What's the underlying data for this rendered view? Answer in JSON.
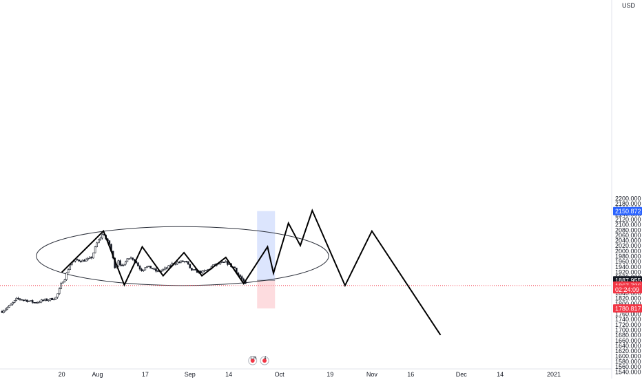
{
  "chart_data": {
    "type": "candlestick",
    "currency_label": "USD",
    "y_axis": {
      "ylim": [
        1530,
        2230
      ],
      "ticks": [
        2200,
        2180,
        2160,
        2140,
        2120,
        2100,
        2080,
        2060,
        2040,
        2020,
        2000,
        1980,
        1960,
        1940,
        1920,
        1900,
        1880,
        1860,
        1840,
        1820,
        1800,
        1780,
        1760,
        1740,
        1720,
        1700,
        1680,
        1660,
        1640,
        1620,
        1600,
        1580,
        1560,
        1540
      ],
      "tick_labels": [
        "2200.000",
        "2180.000",
        "2160.000",
        "2140.000",
        "2120.000",
        "2100.000",
        "2080.000",
        "2060.000",
        "2040.000",
        "2020.000",
        "2000.000",
        "1980.000",
        "1960.000",
        "1940.000",
        "1920.000",
        "1900.000",
        "1880.000",
        "1860.000",
        "1840.000",
        "1820.000",
        "1800.000",
        "1780.000",
        "1760.000",
        "1740.000",
        "1720.000",
        "1700.000",
        "1680.000",
        "1660.000",
        "1640.000",
        "1620.000",
        "1600.000",
        "1580.000",
        "1560.000",
        "1540.000"
      ]
    },
    "x_axis": {
      "ticks": [
        {
          "day": 20,
          "label": "20"
        },
        {
          "day": 32,
          "label": "Aug"
        },
        {
          "day": 48,
          "label": "17"
        },
        {
          "day": 63,
          "label": "Sep"
        },
        {
          "day": 76,
          "label": "14"
        },
        {
          "day": 93,
          "label": "Oct"
        },
        {
          "day": 110,
          "label": "19"
        },
        {
          "day": 124,
          "label": "Nov"
        },
        {
          "day": 137,
          "label": "16"
        },
        {
          "day": 154,
          "label": "Dec"
        },
        {
          "day": 167,
          "label": "14"
        },
        {
          "day": 185,
          "label": "2021"
        }
      ]
    },
    "price_badges": [
      {
        "label": "2150.872",
        "value": 2150.872,
        "color": "#2962ff"
      },
      {
        "label": "1887.955",
        "value": 1887.955,
        "color": "#131722"
      },
      {
        "label": "1867.736",
        "value": 1867.736,
        "color": "#f23645"
      },
      {
        "label": "02:24:09",
        "value": 1853.5,
        "color": "#f23645"
      },
      {
        "label": "1780.817",
        "value": 1780.817,
        "color": "#f23645"
      }
    ],
    "current_price": 1867.736,
    "candle_anchors": [
      [
        0,
        1770
      ],
      [
        3,
        1795
      ],
      [
        5,
        1818
      ],
      [
        8,
        1812
      ],
      [
        11,
        1803
      ],
      [
        14,
        1812
      ],
      [
        16,
        1815
      ],
      [
        18,
        1822
      ],
      [
        19,
        1845
      ],
      [
        20,
        1880
      ],
      [
        21,
        1895
      ],
      [
        22,
        1925
      ],
      [
        23,
        1955
      ],
      [
        25,
        1965
      ],
      [
        27,
        1962
      ],
      [
        29,
        1968
      ],
      [
        30,
        1975
      ],
      [
        32,
        2035
      ],
      [
        33,
        2050
      ],
      [
        34,
        2068
      ],
      [
        35,
        2040
      ],
      [
        36,
        2025
      ],
      [
        37,
        1980
      ],
      [
        38,
        1930
      ],
      [
        39,
        1965
      ],
      [
        40,
        1940
      ],
      [
        41,
        1945
      ],
      [
        42,
        1975
      ],
      [
        44,
        1970
      ],
      [
        45,
        1955
      ],
      [
        46,
        1935
      ],
      [
        47,
        1925
      ],
      [
        48,
        1940
      ],
      [
        50,
        1935
      ],
      [
        52,
        1920
      ],
      [
        54,
        1928
      ],
      [
        56,
        1940
      ],
      [
        57,
        1950
      ],
      [
        59,
        1956
      ],
      [
        61,
        1960
      ],
      [
        62,
        1955
      ],
      [
        63,
        1930
      ],
      [
        65,
        1922
      ],
      [
        67,
        1918
      ],
      [
        69,
        1928
      ],
      [
        71,
        1945
      ],
      [
        73,
        1952
      ],
      [
        75,
        1955
      ],
      [
        76,
        1950
      ],
      [
        77,
        1940
      ],
      [
        78,
        1935
      ],
      [
        79,
        1910
      ],
      [
        80,
        1900
      ],
      [
        81,
        1880
      ],
      [
        81.6,
        1872
      ]
    ],
    "pattern_line": [
      [
        20,
        1918
      ],
      [
        34,
        2075
      ],
      [
        41,
        1870
      ],
      [
        47,
        2015
      ],
      [
        54,
        1905
      ],
      [
        61,
        1993
      ],
      [
        67,
        1905
      ],
      [
        75,
        1975
      ],
      [
        81,
        1875
      ],
      [
        89,
        2015
      ],
      [
        91,
        1915
      ],
      [
        96,
        2105
      ],
      [
        100,
        2020
      ],
      [
        104,
        2153
      ],
      [
        115,
        1868
      ],
      [
        124,
        2075
      ],
      [
        147,
        1680
      ]
    ],
    "ellipse": {
      "center_day": 60.5,
      "center_price": 1980,
      "radius_days": 49,
      "radius_price": 112
    },
    "position_tool": {
      "x_start_day": 85.5,
      "x_end_day": 91.5,
      "entry_price": 1887.955,
      "target_price": 2150.872,
      "stop_price": 1780.817,
      "target_color": "#dce5fd",
      "stop_color": "#fddcdf"
    },
    "event_markers": [
      {
        "label": "115",
        "day": 84
      },
      {
        "label": "4",
        "day": 88
      }
    ]
  }
}
